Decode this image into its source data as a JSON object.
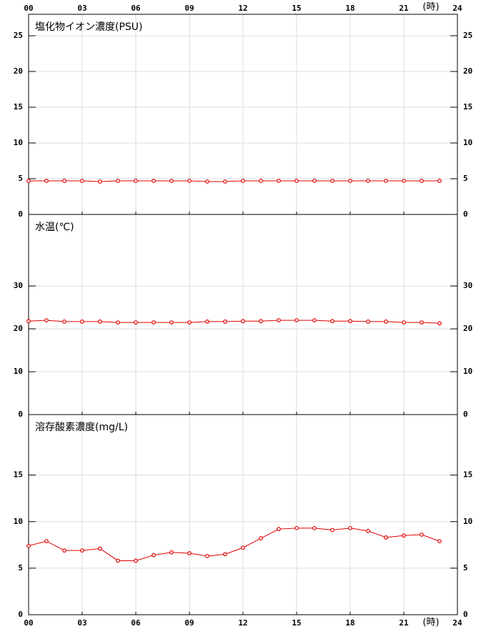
{
  "chart_data": [
    {
      "type": "line",
      "title": "塩化物イオン濃度(PSU)",
      "x_unit": "(時)",
      "x": [
        0,
        1,
        2,
        3,
        4,
        5,
        6,
        7,
        8,
        9,
        10,
        11,
        12,
        13,
        14,
        15,
        16,
        17,
        18,
        19,
        20,
        21,
        22,
        23
      ],
      "values": [
        4.7,
        4.7,
        4.7,
        4.7,
        4.6,
        4.7,
        4.7,
        4.7,
        4.7,
        4.7,
        4.6,
        4.6,
        4.7,
        4.7,
        4.7,
        4.7,
        4.7,
        4.7,
        4.7,
        4.7,
        4.7,
        4.7,
        4.7,
        4.7
      ],
      "color": "#e00000",
      "xlim": [
        0,
        24
      ],
      "xticks": [
        {
          "value": 0,
          "label": "00"
        },
        {
          "value": 3,
          "label": "03"
        },
        {
          "value": 6,
          "label": "06"
        },
        {
          "value": 9,
          "label": "09"
        },
        12,
        15,
        18,
        21,
        24
      ],
      "ylim": [
        0,
        28
      ],
      "yticks": [
        0,
        5,
        10,
        15,
        20,
        25
      ],
      "grid": true
    },
    {
      "type": "line",
      "title": "水温(℃)",
      "x": [
        0,
        1,
        2,
        3,
        4,
        5,
        6,
        7,
        8,
        9,
        10,
        11,
        12,
        13,
        14,
        15,
        16,
        17,
        18,
        19,
        20,
        21,
        22,
        23
      ],
      "values": [
        21.8,
        22.0,
        21.7,
        21.7,
        21.7,
        21.5,
        21.5,
        21.5,
        21.5,
        21.5,
        21.7,
        21.7,
        21.8,
        21.8,
        22.0,
        22.0,
        22.0,
        21.8,
        21.8,
        21.7,
        21.7,
        21.5,
        21.5,
        21.3
      ],
      "color": "#e00000",
      "xlim": [
        0,
        24
      ],
      "xticks": [
        0,
        3,
        6,
        9,
        12,
        15,
        18,
        21,
        24
      ],
      "ylim": [
        0,
        46.7
      ],
      "yticks": [
        0,
        10,
        20,
        30
      ],
      "grid": true
    },
    {
      "type": "line",
      "title": "溶存酸素濃度(mg/L)",
      "x_unit": "(時)",
      "x": [
        0,
        1,
        2,
        3,
        4,
        5,
        6,
        7,
        8,
        9,
        10,
        11,
        12,
        13,
        14,
        15,
        16,
        17,
        18,
        19,
        20,
        21,
        22,
        23
      ],
      "values": [
        7.4,
        7.9,
        6.9,
        6.9,
        7.1,
        5.8,
        5.8,
        6.4,
        6.7,
        6.6,
        6.3,
        6.5,
        7.2,
        8.2,
        9.2,
        9.3,
        9.3,
        9.1,
        9.3,
        9.0,
        8.3,
        8.5,
        8.6,
        7.9
      ],
      "color": "#e00000",
      "xlim": [
        0,
        24
      ],
      "xticks": [
        {
          "value": 0,
          "label": "00"
        },
        {
          "value": 3,
          "label": "03"
        },
        {
          "value": 6,
          "label": "06"
        },
        {
          "value": 9,
          "label": "09"
        },
        12,
        15,
        18,
        21,
        24
      ],
      "ylim": [
        0,
        21.5
      ],
      "yticks": [
        0,
        5,
        10,
        15
      ],
      "grid": true
    }
  ]
}
